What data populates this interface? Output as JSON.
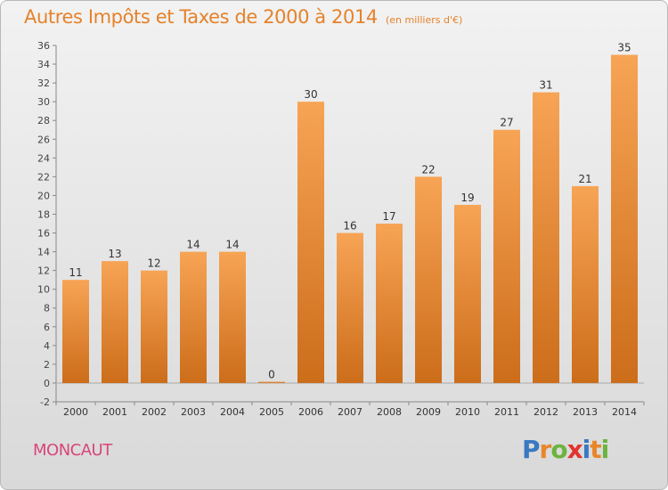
{
  "header": {
    "title": "Autres Impôts et Taxes de 2000 à 2014",
    "subtitle": "(en milliers d'€)"
  },
  "footer": {
    "commune": "MONCAUT",
    "logo_text": "Proxiti"
  },
  "colors": {
    "bar_light": "#f7a455",
    "bar_dark": "#cc6d1a",
    "title": "#e5822a",
    "commune": "#d9457a",
    "logo_letters": [
      "#3a78c2",
      "#e8862a",
      "#6cb33f",
      "#e2342f",
      "#3a78c2",
      "#e8862a",
      "#6cb33f"
    ]
  },
  "chart_data": {
    "type": "bar",
    "title": "Autres Impôts et Taxes de 2000 à 2014",
    "subtitle": "(en milliers d'€)",
    "categories": [
      "2000",
      "2001",
      "2002",
      "2003",
      "2004",
      "2005",
      "2006",
      "2007",
      "2008",
      "2009",
      "2010",
      "2011",
      "2012",
      "2013",
      "2014"
    ],
    "values": [
      11,
      13,
      12,
      14,
      14,
      0,
      30,
      16,
      17,
      22,
      19,
      27,
      31,
      21,
      35
    ],
    "ylim": [
      -2,
      36
    ],
    "yticks": [
      -2,
      0,
      2,
      4,
      6,
      8,
      10,
      12,
      14,
      16,
      18,
      20,
      22,
      24,
      26,
      28,
      30,
      32,
      34,
      36
    ],
    "grid": false,
    "data_labels": true
  }
}
